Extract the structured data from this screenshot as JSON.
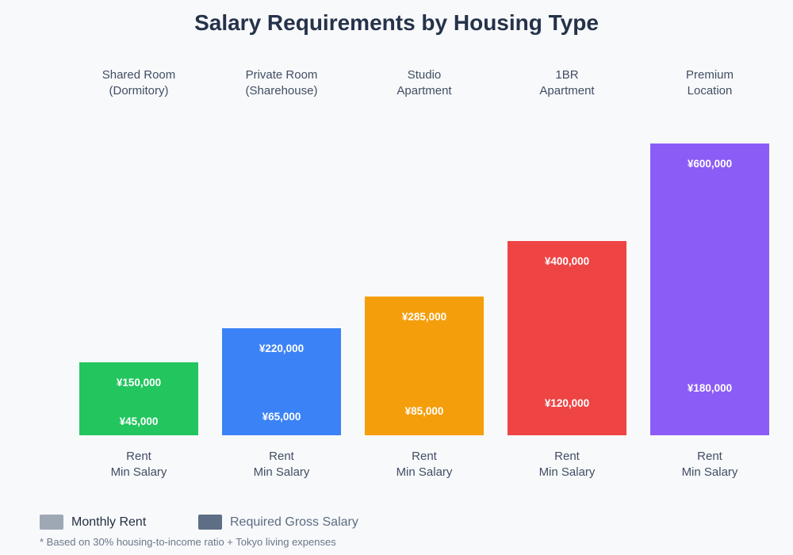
{
  "title": "Salary Requirements by Housing Type",
  "footnote": "* Based on 30% housing-to-income ratio + Tokyo living expenses",
  "legend": {
    "monthly_rent": {
      "label": "Monthly Rent",
      "swatch_color": "#9ea8b5"
    },
    "required_gross_salary": {
      "label": "Required Gross Salary",
      "swatch_color": "#5e6f85"
    }
  },
  "bar_footer": {
    "line1": "Rent",
    "line2": "Min Salary"
  },
  "bars": [
    {
      "header_line1": "Shared Room",
      "header_line2": "(Dormitory)",
      "color": "#22c55e",
      "salary": 150000,
      "rent": 45000,
      "salary_label": "¥150,000",
      "rent_label": "¥45,000"
    },
    {
      "header_line1": "Private Room",
      "header_line2": "(Sharehouse)",
      "color": "#3b82f6",
      "salary": 220000,
      "rent": 65000,
      "salary_label": "¥220,000",
      "rent_label": "¥65,000"
    },
    {
      "header_line1": "Studio",
      "header_line2": "Apartment",
      "color": "#f59e0b",
      "salary": 285000,
      "rent": 85000,
      "salary_label": "¥285,000",
      "rent_label": "¥85,000"
    },
    {
      "header_line1": "1BR",
      "header_line2": "Apartment",
      "color": "#ef4444",
      "salary": 400000,
      "rent": 120000,
      "salary_label": "¥400,000",
      "rent_label": "¥120,000"
    },
    {
      "header_line1": "Premium",
      "header_line2": "Location",
      "color": "#8b5cf6",
      "salary": 600000,
      "rent": 180000,
      "salary_label": "¥600,000",
      "rent_label": "¥180,000"
    }
  ],
  "chart_data": {
    "type": "bar",
    "title": "Salary Requirements by Housing Type",
    "categories": [
      "Shared Room (Dormitory)",
      "Private Room (Sharehouse)",
      "Studio Apartment",
      "1BR Apartment",
      "Premium Location"
    ],
    "series": [
      {
        "name": "Monthly Rent",
        "values": [
          45000,
          65000,
          85000,
          120000,
          180000
        ]
      },
      {
        "name": "Required Gross Salary",
        "values": [
          150000,
          220000,
          285000,
          400000,
          600000
        ]
      }
    ],
    "bar_colors": [
      "#22c55e",
      "#3b82f6",
      "#f59e0b",
      "#ef4444",
      "#8b5cf6"
    ],
    "value_prefix": "¥",
    "ylim": [
      0,
      600000
    ],
    "grid": false,
    "axes_hidden": true,
    "legend_position": "bottom-left",
    "annotation": "* Based on 30% housing-to-income ratio + Tokyo living expenses",
    "per_bar_axis_labels": [
      "Rent",
      "Min Salary"
    ]
  }
}
